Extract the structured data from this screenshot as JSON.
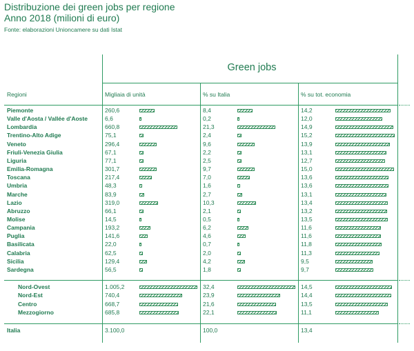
{
  "header": {
    "title": "Distribuzione dei green jobs per regione",
    "subtitle": "Anno 2018 (milioni di euro)",
    "source": "Fonte: elaborazioni Unioncamere su dati Istat"
  },
  "table": {
    "group_title": "Green jobs",
    "columns": [
      "Regioni",
      "Migliaia di unità",
      "% su Italia",
      "% su tot. economia"
    ]
  },
  "chart_data": {
    "type": "table",
    "title": "Distribuzione dei green jobs per regione",
    "subtitle": "Anno 2018 (milioni di euro)",
    "columns": [
      "Regioni",
      "Migliaia di unità",
      "% su Italia",
      "% su tot. economia"
    ],
    "rows": [
      {
        "label": "Piemonte",
        "migliaia": 260.6,
        "migliaia_txt": "260,6",
        "italia": 8.4,
        "italia_txt": "8,4",
        "economia": 14.2,
        "economia_txt": "14,2"
      },
      {
        "label": "Valle d'Aosta / Vallée d'Aoste",
        "migliaia": 6.6,
        "migliaia_txt": "6,6",
        "italia": 0.2,
        "italia_txt": "0,2",
        "economia": 12.0,
        "economia_txt": "12,0"
      },
      {
        "label": "Lombardia",
        "migliaia": 660.8,
        "migliaia_txt": "660,8",
        "italia": 21.3,
        "italia_txt": "21,3",
        "economia": 14.9,
        "economia_txt": "14,9"
      },
      {
        "label": "Trentino-Alto Adige",
        "migliaia": 75.1,
        "migliaia_txt": "75,1",
        "italia": 2.4,
        "italia_txt": "2,4",
        "economia": 15.2,
        "economia_txt": "15,2"
      },
      {
        "label": "Veneto",
        "migliaia": 296.4,
        "migliaia_txt": "296,4",
        "italia": 9.6,
        "italia_txt": "9,6",
        "economia": 13.9,
        "economia_txt": "13,9"
      },
      {
        "label": "Friuli-Venezia Giulia",
        "migliaia": 67.1,
        "migliaia_txt": "67,1",
        "italia": 2.2,
        "italia_txt": "2,2",
        "economia": 13.1,
        "economia_txt": "13,1"
      },
      {
        "label": "Liguria",
        "migliaia": 77.1,
        "migliaia_txt": "77,1",
        "italia": 2.5,
        "italia_txt": "2,5",
        "economia": 12.7,
        "economia_txt": "12,7"
      },
      {
        "label": "Emilia-Romagna",
        "migliaia": 301.7,
        "migliaia_txt": "301,7",
        "italia": 9.7,
        "italia_txt": "9,7",
        "economia": 15.0,
        "economia_txt": "15,0"
      },
      {
        "label": "Toscana",
        "migliaia": 217.4,
        "migliaia_txt": "217,4",
        "italia": 7.0,
        "italia_txt": "7,0",
        "economia": 13.6,
        "economia_txt": "13,6"
      },
      {
        "label": "Umbria",
        "migliaia": 48.3,
        "migliaia_txt": "48,3",
        "italia": 1.6,
        "italia_txt": "1,6",
        "economia": 13.6,
        "economia_txt": "13,6"
      },
      {
        "label": "Marche",
        "migliaia": 83.9,
        "migliaia_txt": "83,9",
        "italia": 2.7,
        "italia_txt": "2,7",
        "economia": 13.1,
        "economia_txt": "13,1"
      },
      {
        "label": "Lazio",
        "migliaia": 319.0,
        "migliaia_txt": "319,0",
        "italia": 10.3,
        "italia_txt": "10,3",
        "economia": 13.4,
        "economia_txt": "13,4"
      },
      {
        "label": "Abruzzo",
        "migliaia": 66.1,
        "migliaia_txt": "66,1",
        "italia": 2.1,
        "italia_txt": "2,1",
        "economia": 13.2,
        "economia_txt": "13,2"
      },
      {
        "label": "Molise",
        "migliaia": 14.5,
        "migliaia_txt": "14,5",
        "italia": 0.5,
        "italia_txt": "0,5",
        "economia": 13.5,
        "economia_txt": "13,5"
      },
      {
        "label": "Campania",
        "migliaia": 193.2,
        "migliaia_txt": "193,2",
        "italia": 6.2,
        "italia_txt": "6,2",
        "economia": 11.6,
        "economia_txt": "11,6"
      },
      {
        "label": "Puglia",
        "migliaia": 141.6,
        "migliaia_txt": "141,6",
        "italia": 4.6,
        "italia_txt": "4,6",
        "economia": 11.6,
        "economia_txt": "11,6"
      },
      {
        "label": "Basilicata",
        "migliaia": 22.0,
        "migliaia_txt": "22,0",
        "italia": 0.7,
        "italia_txt": "0,7",
        "economia": 11.8,
        "economia_txt": "11,8"
      },
      {
        "label": "Calabria",
        "migliaia": 62.5,
        "migliaia_txt": "62,5",
        "italia": 2.0,
        "italia_txt": "2,0",
        "economia": 11.3,
        "economia_txt": "11,3"
      },
      {
        "label": "Sicilia",
        "migliaia": 129.4,
        "migliaia_txt": "129,4",
        "italia": 4.2,
        "italia_txt": "4,2",
        "economia": 9.5,
        "economia_txt": "9,5"
      },
      {
        "label": "Sardegna",
        "migliaia": 56.5,
        "migliaia_txt": "56,5",
        "italia": 1.8,
        "italia_txt": "1,8",
        "economia": 9.7,
        "economia_txt": "9,7"
      }
    ],
    "macro_rows": [
      {
        "label": "Nord-Ovest",
        "migliaia": 1005.2,
        "migliaia_txt": "1.005,2",
        "italia": 32.4,
        "italia_txt": "32,4",
        "economia": 14.5,
        "economia_txt": "14,5"
      },
      {
        "label": "Nord-Est",
        "migliaia": 740.4,
        "migliaia_txt": "740,4",
        "italia": 23.9,
        "italia_txt": "23,9",
        "economia": 14.4,
        "economia_txt": "14,4"
      },
      {
        "label": "Centro",
        "migliaia": 668.7,
        "migliaia_txt": "668,7",
        "italia": 21.6,
        "italia_txt": "21,6",
        "economia": 13.5,
        "economia_txt": "13,5"
      },
      {
        "label": "Mezzogiorno",
        "migliaia": 685.8,
        "migliaia_txt": "685,8",
        "italia": 22.1,
        "italia_txt": "22,1",
        "economia": 11.1,
        "economia_txt": "11,1"
      }
    ],
    "total": {
      "label": "Italia",
      "migliaia": 3100.0,
      "migliaia_txt": "3.100,0",
      "italia": 100.0,
      "italia_txt": "100,0",
      "economia": 13.4,
      "economia_txt": "13,4"
    },
    "bar_scale_max": {
      "migliaia": 1005.2,
      "italia": 32.4,
      "economia": 15.2
    },
    "colors": {
      "accent": "#1f7a50",
      "bar": "#2e8b57"
    }
  }
}
